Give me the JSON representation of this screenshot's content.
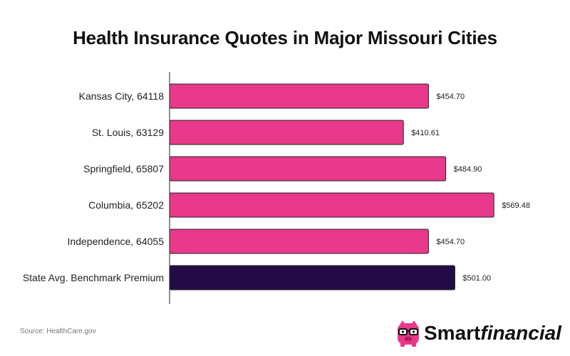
{
  "chart_data": {
    "type": "bar",
    "orientation": "horizontal",
    "title": "Health Insurance Quotes in Major Missouri Cities",
    "xlabel": "",
    "ylabel": "",
    "categories": [
      "Kansas City, 64118",
      "St. Louis, 63129",
      "Springfield, 65807",
      "Columbia, 65202",
      "Independence, 64055",
      "State Avg. Benchmark Premium"
    ],
    "values": [
      454.7,
      410.61,
      484.9,
      569.48,
      454.7,
      501.0
    ],
    "value_labels": [
      "$454.70",
      "$410.61",
      "$484.90",
      "$569.48",
      "$454.70",
      "$501.00"
    ],
    "bar_colors": [
      "#E8398A",
      "#E8398A",
      "#E8398A",
      "#E8398A",
      "#E8398A",
      "#230C45"
    ],
    "xlim": [
      0,
      600
    ],
    "grid": false,
    "legend": "none"
  },
  "footer": {
    "source": "Source: HealthCare.gov"
  },
  "brand": {
    "name_part1": "Smart",
    "name_part2": "financial",
    "logo_icon": "piggy-bank-with-glasses-icon",
    "logo_color": "#E8398A"
  }
}
